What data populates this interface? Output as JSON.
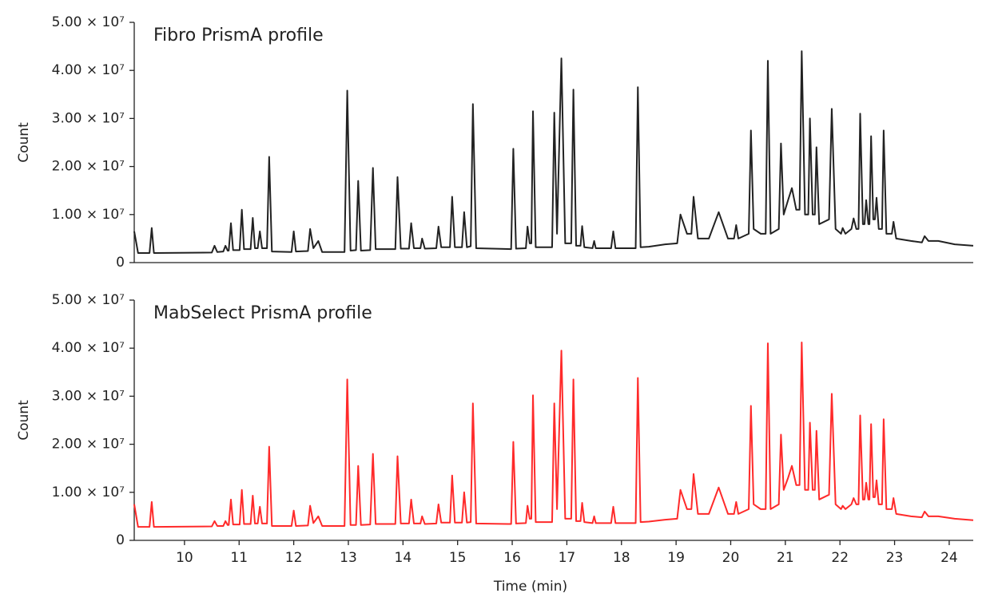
{
  "chart_data": [
    {
      "type": "line",
      "annotation": "Fibro PrismA profile",
      "ylabel": "Count",
      "color": "#222222",
      "xlim": [
        9.08,
        24.44
      ],
      "ylim": [
        0,
        50000000.0
      ],
      "yticks": [
        0,
        {
          "value": 10000000.0,
          "label": "1.00 × 10⁷"
        },
        {
          "value": 20000000.0,
          "label": "2.00 × 10⁷"
        },
        {
          "value": 30000000.0,
          "label": "3.00 × 10⁷"
        },
        {
          "value": 40000000.0,
          "label": "4.00 × 10⁷"
        },
        {
          "value": 50000000.0,
          "label": "5.00 × 10⁷"
        }
      ],
      "x": [
        9.08,
        9.15,
        9.36,
        9.4,
        9.44,
        10.5,
        10.55,
        10.6,
        10.71,
        10.75,
        10.79,
        10.81,
        10.85,
        10.89,
        11.01,
        11.05,
        11.09,
        11.21,
        11.25,
        11.29,
        11.34,
        11.38,
        11.42,
        11.51,
        11.55,
        11.6,
        11.96,
        12.0,
        12.04,
        12.26,
        12.3,
        12.36,
        12.45,
        12.52,
        12.93,
        12.98,
        13.04,
        13.14,
        13.18,
        13.23,
        13.4,
        13.45,
        13.5,
        13.86,
        13.9,
        13.96,
        14.11,
        14.15,
        14.2,
        14.32,
        14.35,
        14.4,
        14.61,
        14.65,
        14.7,
        14.86,
        14.9,
        14.95,
        15.08,
        15.12,
        15.17,
        15.24,
        15.28,
        15.34,
        15.98,
        16.02,
        16.07,
        16.25,
        16.28,
        16.32,
        16.35,
        16.38,
        16.43,
        16.73,
        16.77,
        16.82,
        16.9,
        16.97,
        17.08,
        17.12,
        17.17,
        17.25,
        17.28,
        17.32,
        17.47,
        17.5,
        17.53,
        17.81,
        17.85,
        17.89,
        18.26,
        18.3,
        18.35,
        18.5,
        18.8,
        19.02,
        19.08,
        19.2,
        19.28,
        19.32,
        19.4,
        19.6,
        19.78,
        19.95,
        20.06,
        20.1,
        20.14,
        20.33,
        20.37,
        20.42,
        20.55,
        20.64,
        20.68,
        20.73,
        20.88,
        20.92,
        20.97,
        21.05,
        21.12,
        21.2,
        21.26,
        21.3,
        21.36,
        21.42,
        21.45,
        21.5,
        21.54,
        21.57,
        21.62,
        21.8,
        21.85,
        21.92,
        22.02,
        22.05,
        22.1,
        22.21,
        22.25,
        22.3,
        22.34,
        22.37,
        22.42,
        22.45,
        22.48,
        22.52,
        22.54,
        22.57,
        22.61,
        22.64,
        22.67,
        22.71,
        22.77,
        22.8,
        22.85,
        22.95,
        22.98,
        23.03,
        23.3,
        23.5,
        23.55,
        23.62,
        23.8,
        24.1,
        24.44
      ],
      "values": [
        6500000.0,
        2000000.0,
        2000000.0,
        7200000.0,
        2000000.0,
        2100000.0,
        3500000.0,
        2200000.0,
        2300000.0,
        3500000.0,
        2500000.0,
        2500000.0,
        8200000.0,
        2600000.0,
        2600000.0,
        11000000.0,
        2800000.0,
        2800000.0,
        9300000.0,
        3000000.0,
        3000000.0,
        6500000.0,
        3000000.0,
        3000000.0,
        22000000.0,
        2300000.0,
        2200000.0,
        6500000.0,
        2300000.0,
        2400000.0,
        7000000.0,
        3000000.0,
        4500000.0,
        2200000.0,
        2200000.0,
        35800000.0,
        2500000.0,
        2600000.0,
        17000000.0,
        2500000.0,
        2600000.0,
        19700000.0,
        2800000.0,
        2800000.0,
        17800000.0,
        2900000.0,
        2900000.0,
        8200000.0,
        3000000.0,
        3000000.0,
        5000000.0,
        2900000.0,
        3000000.0,
        7500000.0,
        3200000.0,
        3200000.0,
        13700000.0,
        3200000.0,
        3200000.0,
        10500000.0,
        3200000.0,
        3400000.0,
        33000000.0,
        3000000.0,
        2800000.0,
        23700000.0,
        2900000.0,
        3000000.0,
        7500000.0,
        4000000.0,
        4000000.0,
        31500000.0,
        3200000.0,
        3200000.0,
        31200000.0,
        6000000.0,
        42500000.0,
        4000000.0,
        4000000.0,
        36000000.0,
        3500000.0,
        3500000.0,
        7600000.0,
        3200000.0,
        3000000.0,
        4500000.0,
        3000000.0,
        3000000.0,
        6500000.0,
        3000000.0,
        3000000.0,
        36500000.0,
        3200000.0,
        3300000.0,
        3800000.0,
        4000000.0,
        10000000.0,
        6000000.0,
        6000000.0,
        13700000.0,
        5000000.0,
        5000000.0,
        10500000.0,
        5000000.0,
        5000000.0,
        7800000.0,
        5000000.0,
        6000000.0,
        27500000.0,
        7000000.0,
        6000000.0,
        6000000.0,
        42000000.0,
        6000000.0,
        7000000.0,
        24800000.0,
        10000000.0,
        13000000.0,
        15500000.0,
        11000000.0,
        11000000.0,
        44000000.0,
        10000000.0,
        10000000.0,
        30000000.0,
        10000000.0,
        10000000.0,
        24000000.0,
        8000000.0,
        9000000.0,
        32000000.0,
        7000000.0,
        6000000.0,
        7200000.0,
        6000000.0,
        7000000.0,
        9200000.0,
        7000000.0,
        7000000.0,
        31000000.0,
        8000000.0,
        8000000.0,
        13000000.0,
        8000000.0,
        8000000.0,
        26300000.0,
        9000000.0,
        9000000.0,
        13500000.0,
        7000000.0,
        7000000.0,
        27500000.0,
        6000000.0,
        6000000.0,
        8500000.0,
        5000000.0,
        4500000.0,
        4200000.0,
        5500000.0,
        4500000.0,
        4500000.0,
        3800000.0,
        3500000.0
      ]
    },
    {
      "type": "line",
      "annotation": "MabSelect PrismA profile",
      "ylabel": "Count",
      "xlabel": "Time (min)",
      "color": "#ff2a2a",
      "xlim": [
        9.08,
        24.44
      ],
      "ylim": [
        0,
        50000000.0
      ],
      "xticks": [
        10,
        11,
        12,
        13,
        14,
        15,
        16,
        17,
        18,
        19,
        20,
        21,
        22,
        23,
        24
      ],
      "yticks": [
        0,
        {
          "value": 10000000.0,
          "label": "1.00 × 10⁷"
        },
        {
          "value": 20000000.0,
          "label": "2.00 × 10⁷"
        },
        {
          "value": 30000000.0,
          "label": "3.00 × 10⁷"
        },
        {
          "value": 40000000.0,
          "label": "4.00 × 10⁷"
        },
        {
          "value": 50000000.0,
          "label": "5.00 × 10⁷"
        }
      ],
      "x": [
        9.08,
        9.15,
        9.36,
        9.4,
        9.44,
        10.5,
        10.55,
        10.6,
        10.71,
        10.75,
        10.79,
        10.81,
        10.85,
        10.89,
        11.01,
        11.05,
        11.09,
        11.21,
        11.25,
        11.29,
        11.34,
        11.38,
        11.42,
        11.51,
        11.55,
        11.6,
        11.96,
        12.0,
        12.04,
        12.26,
        12.3,
        12.36,
        12.45,
        12.52,
        12.93,
        12.98,
        13.04,
        13.14,
        13.18,
        13.23,
        13.4,
        13.45,
        13.5,
        13.86,
        13.9,
        13.96,
        14.11,
        14.15,
        14.2,
        14.32,
        14.35,
        14.4,
        14.61,
        14.65,
        14.7,
        14.86,
        14.9,
        14.95,
        15.08,
        15.12,
        15.17,
        15.24,
        15.28,
        15.34,
        15.98,
        16.02,
        16.07,
        16.25,
        16.28,
        16.32,
        16.35,
        16.38,
        16.43,
        16.73,
        16.77,
        16.82,
        16.9,
        16.97,
        17.08,
        17.12,
        17.17,
        17.25,
        17.28,
        17.32,
        17.47,
        17.5,
        17.53,
        17.81,
        17.85,
        17.89,
        18.26,
        18.3,
        18.35,
        18.5,
        18.8,
        19.02,
        19.08,
        19.2,
        19.28,
        19.32,
        19.4,
        19.6,
        19.78,
        19.95,
        20.06,
        20.1,
        20.14,
        20.33,
        20.37,
        20.42,
        20.55,
        20.64,
        20.68,
        20.73,
        20.88,
        20.92,
        20.97,
        21.05,
        21.12,
        21.2,
        21.26,
        21.3,
        21.36,
        21.42,
        21.45,
        21.5,
        21.54,
        21.57,
        21.62,
        21.8,
        21.85,
        21.92,
        22.02,
        22.05,
        22.1,
        22.21,
        22.25,
        22.3,
        22.34,
        22.37,
        22.42,
        22.45,
        22.48,
        22.52,
        22.54,
        22.57,
        22.61,
        22.64,
        22.67,
        22.71,
        22.77,
        22.8,
        22.85,
        22.95,
        22.98,
        23.03,
        23.3,
        23.5,
        23.55,
        23.62,
        23.8,
        24.1,
        24.44
      ],
      "values": [
        7500000.0,
        2800000.0,
        2800000.0,
        8000000.0,
        2800000.0,
        2900000.0,
        4000000.0,
        3000000.0,
        3000000.0,
        4000000.0,
        3200000.0,
        3200000.0,
        8500000.0,
        3300000.0,
        3300000.0,
        10500000.0,
        3400000.0,
        3400000.0,
        9300000.0,
        3500000.0,
        3500000.0,
        7000000.0,
        3500000.0,
        3500000.0,
        19500000.0,
        3000000.0,
        3000000.0,
        6200000.0,
        3000000.0,
        3100000.0,
        7200000.0,
        3600000.0,
        5000000.0,
        3000000.0,
        3000000.0,
        33500000.0,
        3200000.0,
        3200000.0,
        15500000.0,
        3200000.0,
        3300000.0,
        18000000.0,
        3400000.0,
        3400000.0,
        17500000.0,
        3500000.0,
        3500000.0,
        8500000.0,
        3500000.0,
        3500000.0,
        5000000.0,
        3400000.0,
        3500000.0,
        7500000.0,
        3700000.0,
        3700000.0,
        13500000.0,
        3700000.0,
        3700000.0,
        10000000.0,
        3700000.0,
        3800000.0,
        28500000.0,
        3500000.0,
        3400000.0,
        20500000.0,
        3500000.0,
        3600000.0,
        7200000.0,
        4500000.0,
        4500000.0,
        30200000.0,
        3800000.0,
        3800000.0,
        28500000.0,
        6500000.0,
        39500000.0,
        4500000.0,
        4500000.0,
        33500000.0,
        4000000.0,
        4000000.0,
        7800000.0,
        3800000.0,
        3600000.0,
        5000000.0,
        3600000.0,
        3600000.0,
        7000000.0,
        3600000.0,
        3600000.0,
        33800000.0,
        3800000.0,
        3900000.0,
        4300000.0,
        4500000.0,
        10500000.0,
        6500000.0,
        6500000.0,
        13800000.0,
        5500000.0,
        5500000.0,
        11000000.0,
        5500000.0,
        5500000.0,
        8000000.0,
        5500000.0,
        6500000.0,
        28000000.0,
        7500000.0,
        6500000.0,
        6500000.0,
        41000000.0,
        6500000.0,
        7500000.0,
        22000000.0,
        10500000.0,
        13000000.0,
        15500000.0,
        11500000.0,
        11500000.0,
        41200000.0,
        10500000.0,
        10500000.0,
        24500000.0,
        10500000.0,
        10500000.0,
        22800000.0,
        8500000.0,
        9500000.0,
        30500000.0,
        7500000.0,
        6500000.0,
        7200000.0,
        6500000.0,
        7500000.0,
        8800000.0,
        7500000.0,
        7500000.0,
        26000000.0,
        8500000.0,
        8500000.0,
        12000000.0,
        8500000.0,
        8500000.0,
        24200000.0,
        9000000.0,
        9000000.0,
        12500000.0,
        7500000.0,
        7500000.0,
        25200000.0,
        6500000.0,
        6500000.0,
        8800000.0,
        5500000.0,
        5000000.0,
        4800000.0,
        6000000.0,
        5000000.0,
        5000000.0,
        4500000.0,
        4200000.0
      ]
    }
  ]
}
